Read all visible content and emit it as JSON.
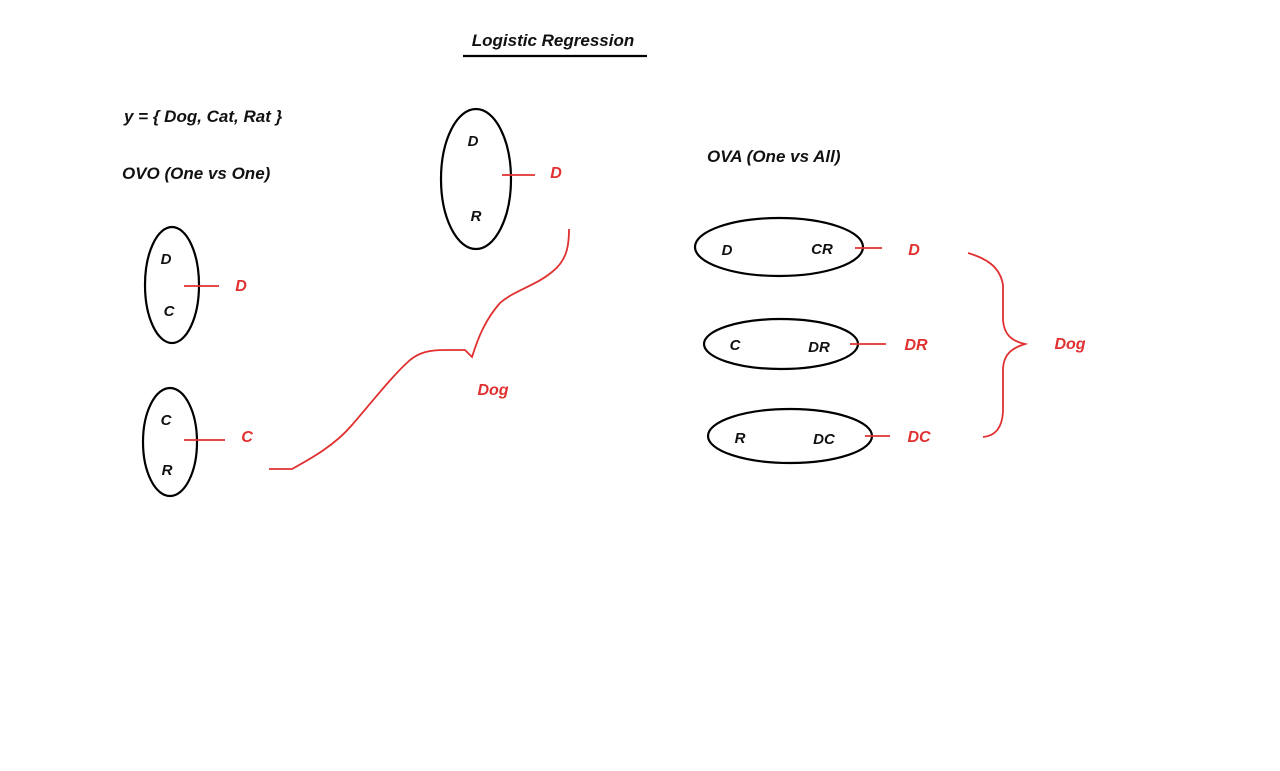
{
  "title": "Logistic Regression",
  "label_set": "y = { Dog, Cat, Rat }",
  "ovo": {
    "heading": "OVO (One vs One)",
    "classifiers": [
      {
        "top": "D",
        "bottom": "C",
        "output": "D"
      },
      {
        "top": "C",
        "bottom": "R",
        "output": "C"
      },
      {
        "top": "D",
        "bottom": "R",
        "output": "D"
      }
    ],
    "result": "Dog"
  },
  "ova": {
    "heading": "OVA (One vs All)",
    "classifiers": [
      {
        "left": "D",
        "right": "CR",
        "output": "D"
      },
      {
        "left": "C",
        "right": "DR",
        "output": "DR"
      },
      {
        "left": "R",
        "right": "DC",
        "output": "DC"
      }
    ],
    "result": "Dog"
  },
  "colors": {
    "ink": "#111111",
    "annotation": "#e03030",
    "background": "#ffffff"
  }
}
